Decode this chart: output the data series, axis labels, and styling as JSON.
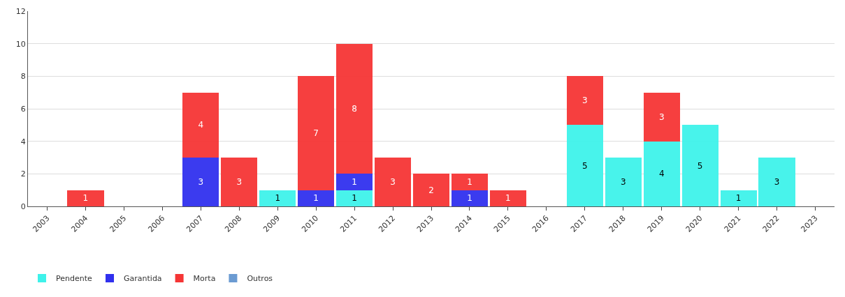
{
  "chart_data": {
    "type": "bar",
    "stacked": true,
    "categories": [
      "2003",
      "2004",
      "2005",
      "2006",
      "2007",
      "2008",
      "2009",
      "2010",
      "2011",
      "2012",
      "2013",
      "2014",
      "2015",
      "2016",
      "2017",
      "2018",
      "2019",
      "2020",
      "2021",
      "2022",
      "2023"
    ],
    "series": [
      {
        "name": "Pendente",
        "color": "#3ef2ea",
        "values": [
          0,
          0,
          0,
          0,
          0,
          0,
          1,
          0,
          1,
          0,
          0,
          0,
          0,
          0,
          5,
          3,
          4,
          5,
          1,
          3,
          0
        ],
        "value_labels": [
          null,
          null,
          null,
          null,
          null,
          null,
          "1",
          null,
          "1",
          null,
          null,
          null,
          null,
          null,
          "5",
          "3",
          "4",
          "5",
          "1",
          "3",
          null
        ]
      },
      {
        "name": "Garantida",
        "color": "#3030ee",
        "values": [
          0,
          0,
          0,
          0,
          3,
          0,
          0,
          1,
          1,
          0,
          0,
          1,
          0,
          0,
          0,
          0,
          0,
          0,
          0,
          0,
          0
        ],
        "value_labels": [
          null,
          null,
          null,
          null,
          "3",
          null,
          null,
          "1",
          "1",
          null,
          null,
          "1",
          null,
          null,
          null,
          null,
          null,
          null,
          null,
          null,
          null
        ]
      },
      {
        "name": "Morta",
        "color": "#f53535",
        "values": [
          0,
          1,
          0,
          0,
          4,
          3,
          0,
          7,
          8,
          3,
          2,
          1,
          1,
          0,
          3,
          0,
          3,
          0,
          0,
          0,
          0
        ],
        "value_labels": [
          null,
          "1",
          null,
          null,
          "4",
          "3",
          null,
          "7",
          "8",
          "3",
          "2",
          "1",
          "1",
          null,
          "3",
          null,
          "3",
          null,
          null,
          null,
          null
        ]
      },
      {
        "name": "Outros",
        "color": "#6b9bd2",
        "values": [
          0,
          0,
          0,
          0,
          0,
          0,
          0,
          0,
          0,
          0,
          0,
          0,
          0,
          0,
          0,
          0,
          0,
          0,
          0,
          0,
          0
        ],
        "value_labels": [
          null,
          null,
          null,
          null,
          null,
          null,
          null,
          null,
          null,
          null,
          null,
          null,
          null,
          null,
          null,
          null,
          null,
          null,
          null,
          null,
          null
        ]
      }
    ],
    "ylim": [
      0,
      12
    ],
    "yticks": [
      0,
      2,
      4,
      6,
      8,
      10,
      12
    ],
    "grid": "y",
    "legend": "bottom left"
  }
}
